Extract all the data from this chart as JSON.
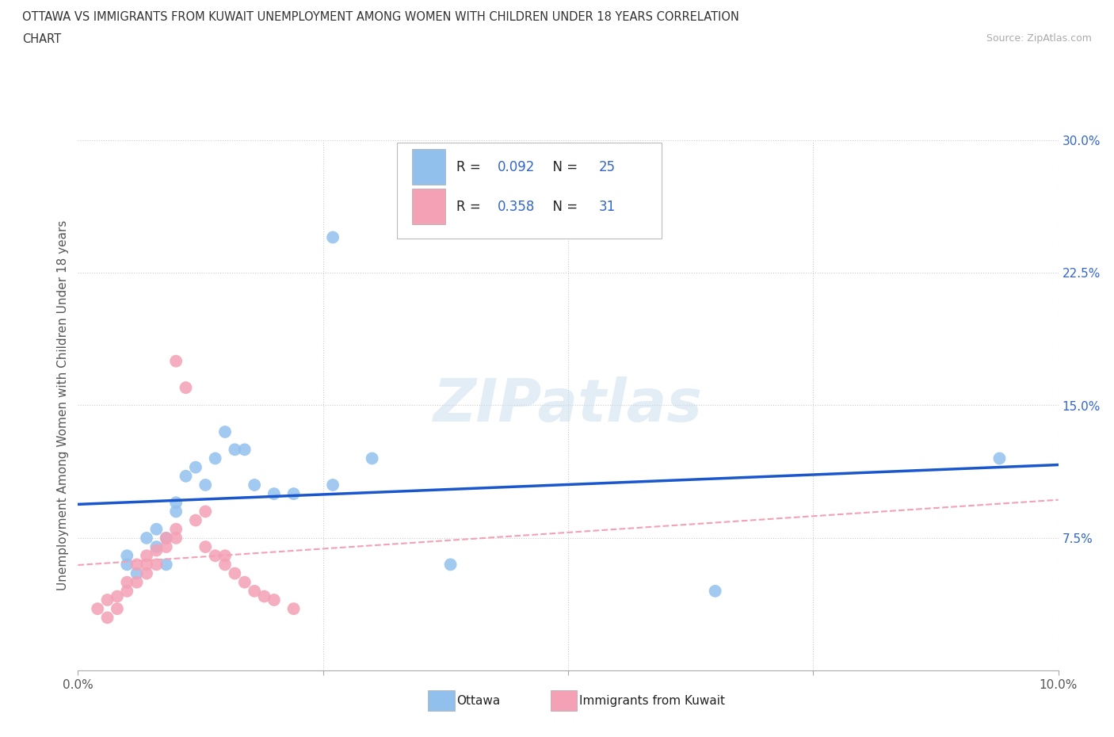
{
  "title_line1": "OTTAWA VS IMMIGRANTS FROM KUWAIT UNEMPLOYMENT AMONG WOMEN WITH CHILDREN UNDER 18 YEARS CORRELATION",
  "title_line2": "CHART",
  "source": "Source: ZipAtlas.com",
  "ylabel": "Unemployment Among Women with Children Under 18 years",
  "xlim": [
    0.0,
    0.1
  ],
  "ylim": [
    0.0,
    0.3
  ],
  "ottawa_color": "#92C0ED",
  "kuwait_color": "#F4A0B5",
  "ottawa_trend_color": "#1A56CC",
  "kuwait_trend_color": "#F4A0B5",
  "ottawa_R": 0.092,
  "ottawa_N": 25,
  "kuwait_R": 0.358,
  "kuwait_N": 31,
  "legend_R_color": "#3366CC",
  "watermark": "ZIPatlas",
  "background_color": "#ffffff",
  "grid_color": "#cccccc",
  "ottawa_x": [
    0.005,
    0.005,
    0.006,
    0.007,
    0.008,
    0.008,
    0.009,
    0.009,
    0.01,
    0.01,
    0.011,
    0.012,
    0.013,
    0.014,
    0.015,
    0.016,
    0.017,
    0.018,
    0.02,
    0.022,
    0.026,
    0.03,
    0.038,
    0.065,
    0.094
  ],
  "ottawa_y": [
    0.06,
    0.065,
    0.055,
    0.075,
    0.07,
    0.08,
    0.06,
    0.075,
    0.09,
    0.095,
    0.11,
    0.115,
    0.105,
    0.12,
    0.135,
    0.125,
    0.125,
    0.105,
    0.1,
    0.1,
    0.105,
    0.12,
    0.06,
    0.045,
    0.12
  ],
  "kuwait_x": [
    0.002,
    0.003,
    0.003,
    0.004,
    0.004,
    0.005,
    0.005,
    0.006,
    0.006,
    0.007,
    0.007,
    0.007,
    0.008,
    0.008,
    0.009,
    0.009,
    0.01,
    0.01,
    0.011,
    0.012,
    0.013,
    0.013,
    0.014,
    0.015,
    0.015,
    0.016,
    0.017,
    0.018,
    0.019,
    0.02,
    0.022
  ],
  "kuwait_y": [
    0.035,
    0.03,
    0.04,
    0.035,
    0.042,
    0.045,
    0.05,
    0.05,
    0.06,
    0.055,
    0.06,
    0.065,
    0.06,
    0.068,
    0.07,
    0.075,
    0.075,
    0.08,
    0.16,
    0.085,
    0.09,
    0.07,
    0.065,
    0.06,
    0.065,
    0.055,
    0.05,
    0.045,
    0.042,
    0.04,
    0.035
  ],
  "ottawa_outlier_x": [
    0.026
  ],
  "ottawa_outlier_y": [
    0.245
  ],
  "kuwait_outlier_x": [
    0.01
  ],
  "kuwait_outlier_y": [
    0.175
  ]
}
